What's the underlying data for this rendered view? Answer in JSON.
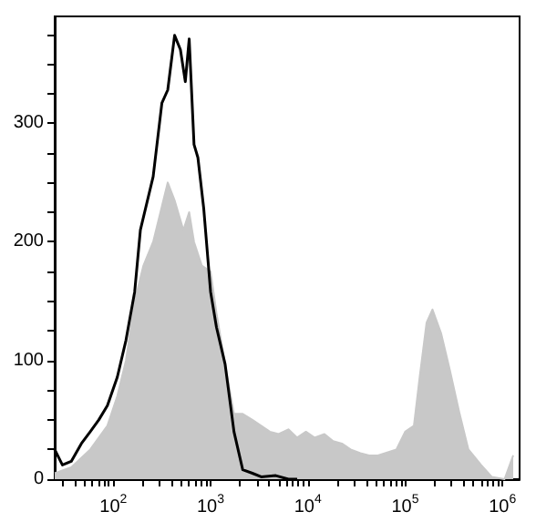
{
  "chart_data": {
    "type": "line",
    "log": "x",
    "grid": false,
    "marker": "none",
    "xlim": [
      25,
      1500000
    ],
    "ylim": [
      0,
      390
    ],
    "xticks": [
      {
        "value": 30,
        "label": null
      },
      {
        "value": 40,
        "label": null
      },
      {
        "value": 50,
        "label": null
      },
      {
        "value": 60,
        "label": null
      },
      {
        "value": 70,
        "label": null
      },
      {
        "value": 80,
        "label": null
      },
      {
        "value": 90,
        "label": null
      },
      {
        "value": 100,
        "label": "10$^{2}$"
      },
      {
        "value": 200,
        "label": null
      },
      {
        "value": 300,
        "label": null
      },
      {
        "value": 400,
        "label": null
      },
      {
        "value": 500,
        "label": null
      },
      {
        "value": 600,
        "label": null
      },
      {
        "value": 700,
        "label": null
      },
      {
        "value": 800,
        "label": null
      },
      {
        "value": 900,
        "label": null
      },
      {
        "value": 1000,
        "label": "10$^{3}$"
      },
      {
        "value": 2000,
        "label": null
      },
      {
        "value": 3000,
        "label": null
      },
      {
        "value": 4000,
        "label": null
      },
      {
        "value": 5000,
        "label": null
      },
      {
        "value": 6000,
        "label": null
      },
      {
        "value": 7000,
        "label": null
      },
      {
        "value": 8000,
        "label": null
      },
      {
        "value": 9000,
        "label": null
      },
      {
        "value": 10000,
        "label": "10$^{4}$"
      },
      {
        "value": 20000,
        "label": null
      },
      {
        "value": 30000,
        "label": null
      },
      {
        "value": 40000,
        "label": null
      },
      {
        "value": 50000,
        "label": null
      },
      {
        "value": 60000,
        "label": null
      },
      {
        "value": 70000,
        "label": null
      },
      {
        "value": 80000,
        "label": null
      },
      {
        "value": 90000,
        "label": null
      },
      {
        "value": 100000,
        "label": "10$^{5}$"
      },
      {
        "value": 200000,
        "label": null
      },
      {
        "value": 300000,
        "label": null
      },
      {
        "value": 400000,
        "label": null
      },
      {
        "value": 500000,
        "label": null
      },
      {
        "value": 600000,
        "label": null
      },
      {
        "value": 700000,
        "label": null
      },
      {
        "value": 800000,
        "label": null
      },
      {
        "value": 900000,
        "label": null
      },
      {
        "value": 1000000,
        "label": "10$^{6}$"
      }
    ],
    "yticks": [
      0,
      {
        "value": 25,
        "label": null
      },
      {
        "value": 50,
        "label": null
      },
      {
        "value": 75,
        "label": null
      },
      100,
      {
        "value": 125,
        "label": null
      },
      {
        "value": 150,
        "label": null
      },
      {
        "value": 175,
        "label": null
      },
      200,
      {
        "value": 225,
        "label": null
      },
      {
        "value": 250,
        "label": null
      },
      {
        "value": 275,
        "label": null
      },
      300,
      {
        "value": 325,
        "label": null
      },
      {
        "value": 350,
        "label": null
      },
      {
        "value": 375,
        "label": null
      }
    ],
    "series": [
      {
        "type": "area",
        "color": "#c8c8c8",
        "x": [
          25,
          37,
          58,
          87,
          110,
          135,
          166,
          204,
          257,
          316,
          363,
          427,
          525,
          603,
          676,
          813,
          1000,
          1150,
          1410,
          1740,
          2140,
          2690,
          3310,
          4070,
          5010,
          6310,
          7760,
          9550,
          11700,
          14800,
          18200,
          22400,
          27500,
          34700,
          42700,
          52500,
          81300,
          100000,
          123000,
          141000,
          166000,
          191000,
          234000,
          288000,
          363000,
          447000,
          603000,
          776000,
          1050000,
          1290000
        ],
        "values": [
          5,
          10,
          25,
          45,
          70,
          100,
          150,
          180,
          200,
          230,
          250,
          235,
          210,
          225,
          200,
          180,
          175,
          140,
          97,
          55,
          55,
          50,
          45,
          40,
          38,
          42,
          35,
          40,
          35,
          38,
          32,
          30,
          25,
          22,
          20,
          20,
          25,
          40,
          45,
          86,
          132,
          143,
          123,
          92,
          55,
          25,
          12,
          2,
          0,
          20
        ]
      },
      {
        "color": "#000000",
        "x": [
          25,
          30,
          37,
          47,
          58,
          71,
          87,
          110,
          135,
          166,
          190,
          257,
          316,
          363,
          427,
          490,
          550,
          603,
          676,
          741,
          851,
          1000,
          1150,
          1410,
          1740,
          2140,
          2690,
          3310,
          4680,
          6310,
          7760
        ],
        "values": [
          25,
          12,
          15,
          30,
          40,
          50,
          62,
          86,
          117,
          158,
          210,
          255,
          317,
          328,
          374,
          362,
          335,
          371,
          282,
          271,
          228,
          158,
          128,
          97,
          40,
          8,
          5,
          2,
          3,
          0,
          0
        ]
      }
    ]
  }
}
